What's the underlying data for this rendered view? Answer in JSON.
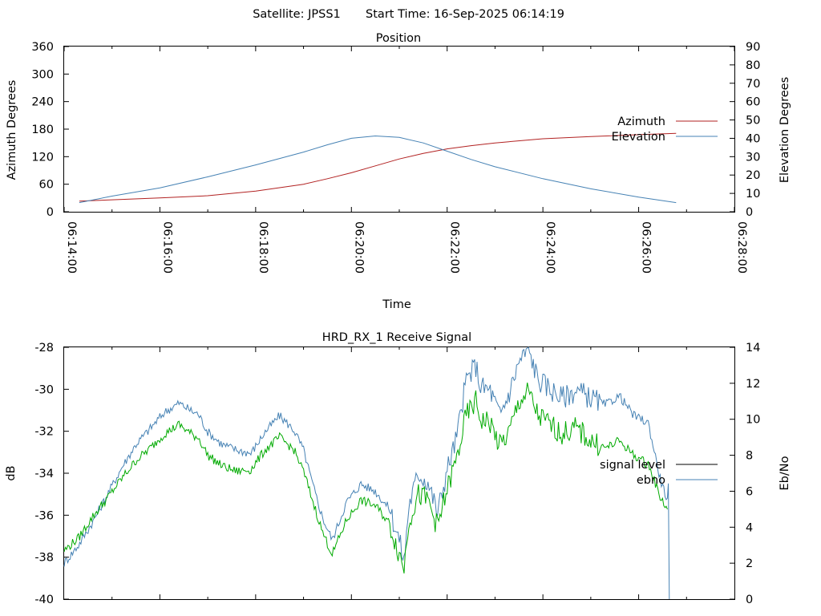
{
  "header": {
    "satellite_text": "Satellite: JPSS1",
    "start_time_text": "Start Time: 16-Sep-2025 06:14:19"
  },
  "chart_data": [
    {
      "type": "line",
      "title": "Position",
      "xlabel": "Time",
      "ylabel": "Azimuth Degrees",
      "y2label": "Elevation Degrees",
      "xlim": [
        "06:14:00",
        "06:28:00"
      ],
      "ylim": [
        0,
        360
      ],
      "y2lim": [
        0,
        90
      ],
      "x_ticks": [
        "06:14:00",
        "06:16:00",
        "06:18:00",
        "06:20:00",
        "06:22:00",
        "06:24:00",
        "06:26:00",
        "06:28:00"
      ],
      "y_ticks": [
        "0",
        "60",
        "120",
        "180",
        "240",
        "300",
        "360"
      ],
      "y2_ticks": [
        "0",
        "10",
        "20",
        "30",
        "40",
        "50",
        "60",
        "70",
        "80",
        "90"
      ],
      "legend_position": "right",
      "grid": false,
      "series": [
        {
          "name": "Azimuth",
          "axis": "left",
          "color": "#b22222",
          "x": [
            "06:14:19",
            "06:15:00",
            "06:16:00",
            "06:17:00",
            "06:18:00",
            "06:19:00",
            "06:19:30",
            "06:20:00",
            "06:20:30",
            "06:21:00",
            "06:21:30",
            "06:22:00",
            "06:22:30",
            "06:23:00",
            "06:24:00",
            "06:25:00",
            "06:26:00",
            "06:26:47"
          ],
          "y": [
            23,
            26,
            30,
            35,
            45,
            60,
            72,
            85,
            100,
            115,
            127,
            137,
            144,
            150,
            159,
            164,
            168,
            171
          ]
        },
        {
          "name": "Elevation",
          "axis": "right",
          "color": "#4682b4",
          "x": [
            "06:14:19",
            "06:15:00",
            "06:16:00",
            "06:17:00",
            "06:18:00",
            "06:19:00",
            "06:19:30",
            "06:20:00",
            "06:20:30",
            "06:21:00",
            "06:21:30",
            "06:22:00",
            "06:22:30",
            "06:23:00",
            "06:24:00",
            "06:25:00",
            "06:26:00",
            "06:26:47"
          ],
          "y": [
            5,
            8.5,
            13,
            19,
            25.5,
            32.5,
            36.5,
            40,
            41.3,
            40.5,
            37.5,
            33,
            28.5,
            24.5,
            18,
            12.5,
            8,
            5
          ]
        }
      ]
    },
    {
      "type": "line",
      "title": "HRD_RX_1 Receive Signal",
      "ylabel": "dB",
      "y2label": "Eb/No",
      "ylim": [
        -40,
        -28
      ],
      "y2lim": [
        0,
        14
      ],
      "x_tick_count": 14,
      "y_ticks": [
        "-40",
        "-38",
        "-36",
        "-34",
        "-32",
        "-30",
        "-28"
      ],
      "y2_ticks": [
        "0",
        "2",
        "4",
        "6",
        "8",
        "10",
        "12",
        "14"
      ],
      "legend_position": "right",
      "grid": false,
      "series": [
        {
          "name": "signal_level",
          "axis": "left",
          "color": "#000000",
          "x": [],
          "y": []
        },
        {
          "name": "ebno",
          "axis": "right",
          "color": "#4682b4",
          "x": [
            0.0,
            0.3,
            0.6,
            0.9,
            1.2,
            1.5,
            1.8,
            2.1,
            2.4,
            2.7,
            2.8,
            3.0,
            3.3,
            3.6,
            3.9,
            4.2,
            4.5,
            4.8,
            5.0,
            5.2,
            5.4,
            5.6,
            5.9,
            6.2,
            6.5,
            6.8,
            7.0,
            7.1,
            7.2,
            7.4,
            7.6,
            7.8,
            8.0,
            8.2,
            8.4,
            8.6,
            8.7,
            8.9,
            9.1,
            9.3,
            9.5,
            9.7,
            9.9,
            10.1,
            10.4,
            10.7,
            11.0,
            11.3,
            11.6,
            11.9,
            12.2,
            12.45,
            12.6,
            12.62,
            12.64
          ],
          "y": [
            2.0,
            3.0,
            4.3,
            5.8,
            7.3,
            8.6,
            9.5,
            10.4,
            10.9,
            10.4,
            10.3,
            9.3,
            8.6,
            8.3,
            8.1,
            9.3,
            10.2,
            9.4,
            8.3,
            6.3,
            4.5,
            3.3,
            5.4,
            6.4,
            6.0,
            5.0,
            3.3,
            2.1,
            5.2,
            7.0,
            6.5,
            4.8,
            7.2,
            9.0,
            12.2,
            13.0,
            11.8,
            11.6,
            10.2,
            11.5,
            13.2,
            13.9,
            12.2,
            11.8,
            11.2,
            11.6,
            11.2,
            10.8,
            11.3,
            10.2,
            9.8,
            6.7,
            5.5,
            6.2,
            0.0
          ]
        },
        {
          "name": "",
          "axis": "right",
          "color": "#00aa00",
          "x": [
            0.0,
            0.3,
            0.6,
            0.9,
            1.2,
            1.5,
            1.8,
            2.1,
            2.4,
            2.7,
            2.8,
            3.0,
            3.3,
            3.6,
            3.9,
            4.2,
            4.5,
            4.8,
            5.0,
            5.2,
            5.4,
            5.6,
            5.9,
            6.2,
            6.5,
            6.8,
            7.0,
            7.1,
            7.2,
            7.4,
            7.6,
            7.8,
            8.0,
            8.2,
            8.4,
            8.6,
            8.7,
            8.9,
            9.1,
            9.3,
            9.5,
            9.7,
            9.9,
            10.1,
            10.4,
            10.7,
            11.0,
            11.3,
            11.6,
            11.9,
            12.2,
            12.45,
            12.6
          ],
          "y": [
            2.7,
            3.4,
            4.6,
            5.6,
            6.7,
            7.7,
            8.4,
            9.2,
            9.7,
            9.1,
            9.0,
            8.0,
            7.4,
            7.1,
            7.2,
            8.3,
            9.0,
            8.3,
            7.1,
            5.4,
            3.7,
            2.5,
            4.4,
            5.5,
            5.2,
            4.2,
            2.5,
            1.8,
            4.4,
            5.8,
            5.5,
            4.0,
            6.1,
            7.8,
            10.2,
            11.0,
            10.0,
            9.8,
            8.5,
            9.3,
            11.0,
            11.5,
            10.2,
            9.8,
            9.2,
            9.5,
            8.8,
            8.4,
            8.8,
            8.0,
            7.5,
            5.7,
            5.0
          ]
        }
      ],
      "annotations": [
        "signal level"
      ]
    }
  ]
}
